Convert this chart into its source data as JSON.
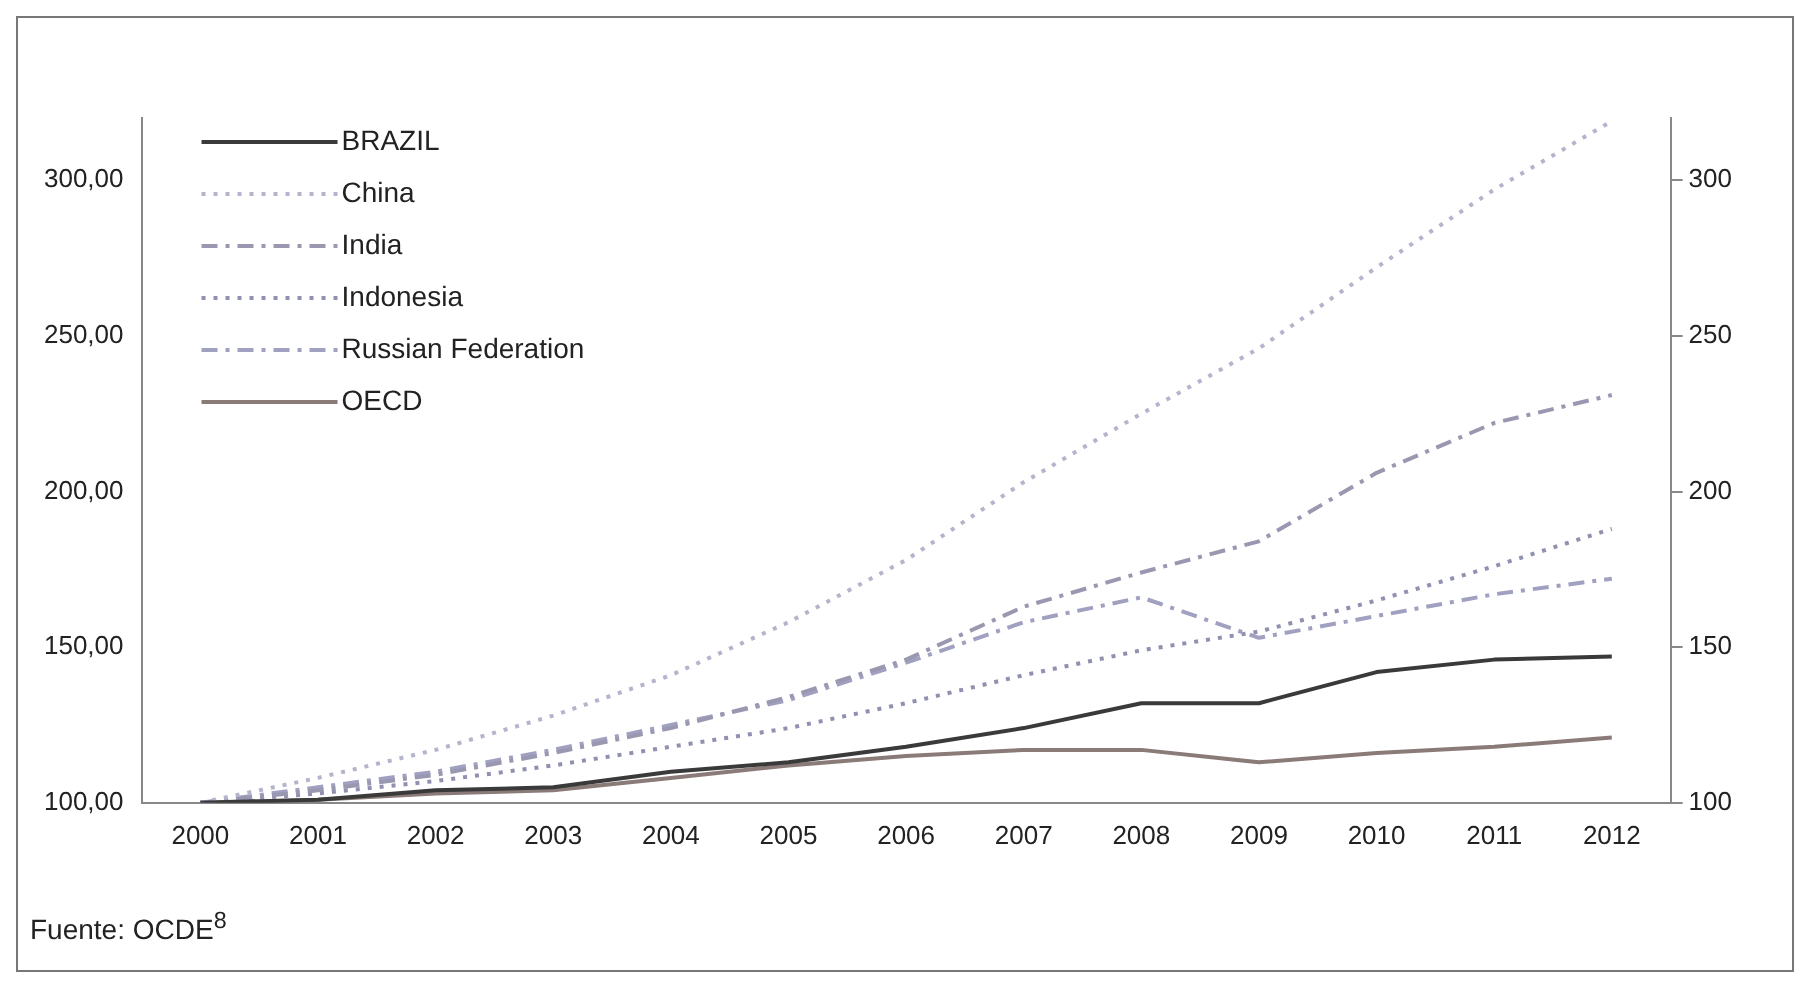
{
  "chart_data": {
    "type": "line",
    "categories": [
      "2000",
      "2001",
      "2002",
      "2003",
      "2004",
      "2005",
      "2006",
      "2007",
      "2008",
      "2009",
      "2010",
      "2011",
      "2012"
    ],
    "series": [
      {
        "name": "BRAZIL",
        "color": "#3a3a3a",
        "line_style": "solid",
        "values": [
          100,
          101,
          104,
          105,
          110,
          113,
          118,
          124,
          132,
          132,
          142,
          146,
          147
        ]
      },
      {
        "name": "China",
        "color": "#b4b4cc",
        "line_style": "dotted",
        "values": [
          100,
          108,
          117,
          128,
          141,
          158,
          178,
          203,
          225,
          246,
          272,
          297,
          319
        ]
      },
      {
        "name": "India",
        "color": "#9a98b0",
        "line_style": "dashed",
        "values": [
          100,
          104,
          109,
          116,
          124,
          134,
          146,
          163,
          174,
          184,
          206,
          222,
          231
        ]
      },
      {
        "name": "Indonesia",
        "color": "#9090b0",
        "line_style": "dotted",
        "values": [
          100,
          103,
          107,
          112,
          118,
          124,
          132,
          141,
          149,
          155,
          165,
          176,
          188
        ]
      },
      {
        "name": "Russian Federation",
        "color": "#a0a0c0",
        "line_style": "dashed",
        "values": [
          100,
          105,
          110,
          117,
          125,
          133,
          145,
          158,
          166,
          153,
          160,
          167,
          172
        ]
      },
      {
        "name": "OECD",
        "color": "#8a7a78",
        "line_style": "solid",
        "values": [
          100,
          101,
          103,
          104,
          108,
          112,
          115,
          117,
          117,
          113,
          116,
          118,
          121
        ]
      }
    ],
    "ylim": [
      100,
      320
    ],
    "yticks": [
      {
        "value": 100,
        "label": "100,00"
      },
      {
        "value": 150,
        "label": "150,00"
      },
      {
        "value": 200,
        "label": "200,00"
      },
      {
        "value": 250,
        "label": "250,00"
      },
      {
        "value": 300,
        "label": "300,00"
      }
    ],
    "y2lim": [
      100,
      320
    ],
    "y2ticks": [
      100,
      150,
      200,
      250,
      300
    ],
    "grid": false,
    "legend": "top left",
    "marker": "none",
    "annotations": [
      "Fuente: OCDE$^{8}$"
    ]
  }
}
